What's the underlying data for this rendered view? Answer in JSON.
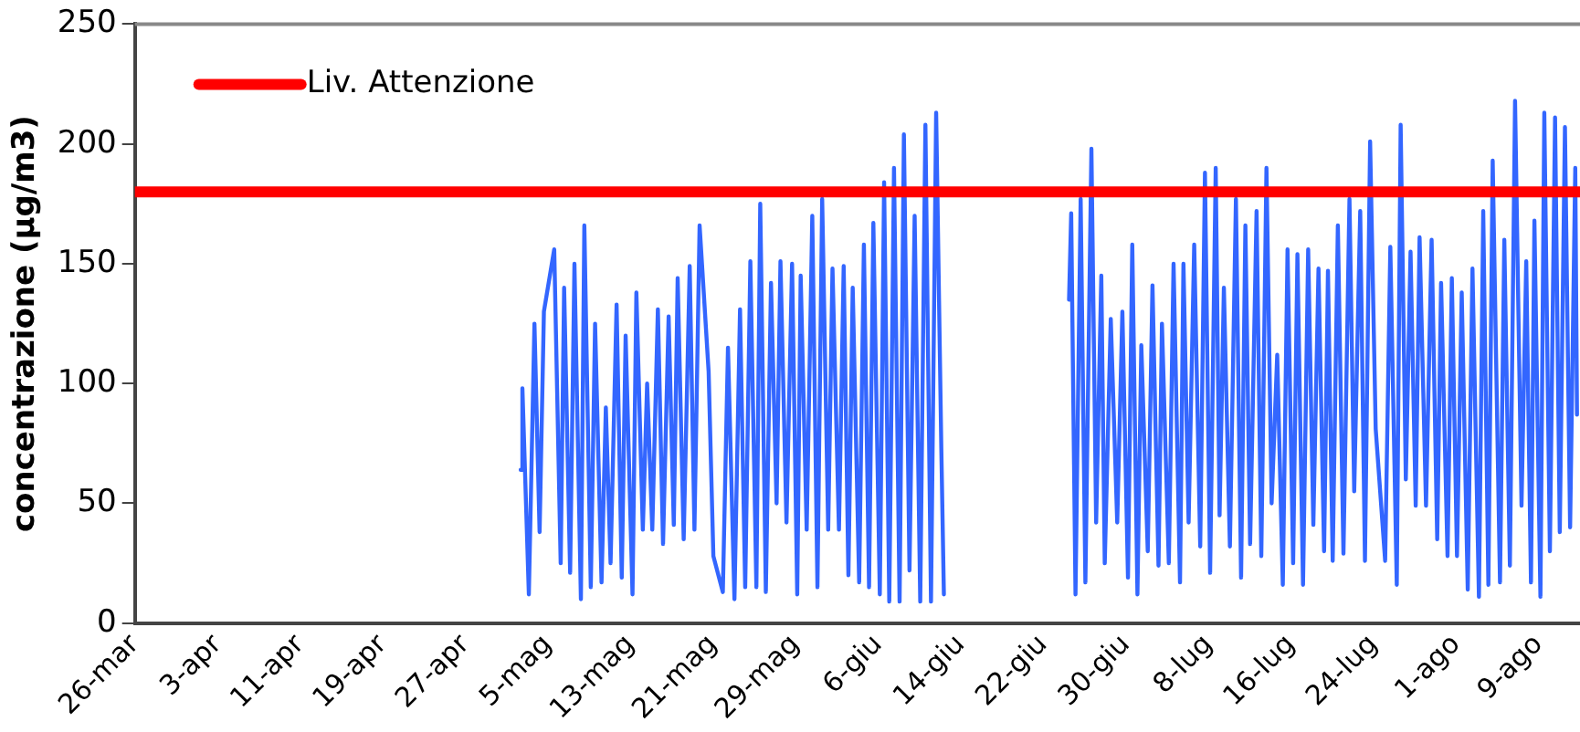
{
  "chart_data": {
    "type": "line",
    "ylabel": "concentrazione (µg/m3)",
    "xlim": [
      "--03-26",
      "--08-13"
    ],
    "xticks": [
      {
        "value": "--03-26",
        "label": "26-mar"
      },
      {
        "value": "--04-03",
        "label": "3-apr"
      },
      {
        "value": "--04-11",
        "label": "11-apr"
      },
      {
        "value": "--04-19",
        "label": "19-apr"
      },
      {
        "value": "--04-27",
        "label": "27-apr"
      },
      {
        "value": "--05-05",
        "label": "5-mag"
      },
      {
        "value": "--05-13",
        "label": "13-mag"
      },
      {
        "value": "--05-21",
        "label": "21-mag"
      },
      {
        "value": "--05-29",
        "label": "29-mag"
      },
      {
        "value": "--06-06",
        "label": "6-giu"
      },
      {
        "value": "--06-14",
        "label": "14-giu"
      },
      {
        "value": "--06-22",
        "label": "22-giu"
      },
      {
        "value": "--06-30",
        "label": "30-giu"
      },
      {
        "value": "--07-08",
        "label": "8-lug"
      },
      {
        "value": "--07-16",
        "label": "16-lug"
      },
      {
        "value": "--07-24",
        "label": "24-lug"
      },
      {
        "value": "--08-01",
        "label": "1-ago"
      },
      {
        "value": "--08-09",
        "label": "9-ago"
      }
    ],
    "ylim": [
      0,
      250
    ],
    "yticks": [
      0,
      50,
      100,
      150,
      200,
      250
    ],
    "grid": false,
    "legend": "top left",
    "marker": "none",
    "line_style": "solid",
    "ref_lines": [
      {
        "axis": "y",
        "value": 180,
        "label": "Liv. Attenzione",
        "color": "#ff0000"
      }
    ],
    "series": [
      {
        "color": "#3366ff",
        "x": [
          "--05-02T09:00",
          "--05-02T13:00",
          "--05-03T04:00",
          "--05-03T17:00",
          "--05-04T05:00",
          "--05-04T15:00",
          "--05-05T15:00",
          "--05-06T06:00",
          "--05-06T14:00",
          "--05-07T04:00",
          "--05-07T14:00",
          "--05-08T05:00",
          "--05-08T13:00",
          "--05-09T04:00",
          "--05-09T14:00",
          "--05-10T05:00",
          "--05-10T15:00",
          "--05-11T02:00",
          "--05-11T16:00",
          "--05-12T04:00",
          "--05-12T13:00",
          "--05-13T05:00",
          "--05-13T14:00",
          "--05-14T05:00",
          "--05-14T15:00",
          "--05-15T03:00",
          "--05-15T16:00",
          "--05-16T04:00",
          "--05-16T17:00",
          "--05-17T05:00",
          "--05-17T14:00",
          "--05-18T04:00",
          "--05-18T18:00",
          "--05-19T05:00",
          "--05-19T17:00",
          "--05-20T14:00",
          "--05-21T01:00",
          "--05-21T23:00",
          "--05-22T11:00",
          "--05-23T02:00",
          "--05-23T15:00",
          "--05-24T03:00",
          "--05-24T15:00",
          "--05-25T05:00",
          "--05-25T14:00",
          "--05-26T03:00",
          "--05-26T15:00",
          "--05-27T04:00",
          "--05-27T13:00",
          "--05-28T03:00",
          "--05-28T16:00",
          "--05-29T04:00",
          "--05-29T12:00",
          "--05-30T02:00",
          "--05-30T15:00",
          "--05-31T03:00",
          "--05-31T14:00",
          "--06-01T04:00",
          "--06-01T14:00",
          "--06-02T05:00",
          "--06-02T16:00",
          "--06-03T03:00",
          "--06-03T13:00",
          "--06-04T04:00",
          "--06-04T15:00",
          "--06-05T03:00",
          "--06-05T13:00",
          "--06-06T04:00",
          "--06-06T14:00",
          "--06-07T02:00",
          "--06-07T13:00",
          "--06-08T02:00",
          "--06-08T12:00",
          "--06-09T01:00",
          "--06-09T13:00",
          "--06-10T02:00",
          "--06-10T14:00",
          "--06-11T03:00",
          "--06-11T15:00",
          "--06-12T03:00",
          "--06-12T09:00",
          "--06-18T12:00",
          "--06-24T12:00",
          "--06-24T17:00",
          "--06-25T03:00",
          "--06-25T15:00",
          "--06-26T02:00",
          "--06-26T16:00",
          "--06-27T03:00",
          "--06-27T15:00",
          "--06-27T23:00",
          "--06-28T13:00",
          "--06-29T04:00",
          "--06-29T16:00",
          "--06-30T05:00",
          "--06-30T15:00",
          "--07-01T03:00",
          "--07-01T12:00",
          "--07-02T03:00",
          "--07-02T14:00",
          "--07-03T04:00",
          "--07-03T12:00",
          "--07-04T04:00",
          "--07-04T15:00",
          "--07-05T06:00",
          "--07-05T14:00",
          "--07-06T02:00",
          "--07-06T15:00",
          "--07-07T05:00",
          "--07-07T16:00",
          "--07-08T04:00",
          "--07-08T17:00",
          "--07-09T02:00",
          "--07-09T12:00",
          "--07-10T02:00",
          "--07-10T16:00",
          "--07-11T04:00",
          "--07-11T14:00",
          "--07-12T01:00",
          "--07-12T16:00",
          "--07-13T03:00",
          "--07-13T15:00",
          "--07-14T03:00",
          "--07-14T16:00",
          "--07-15T05:00",
          "--07-15T16:00",
          "--07-16T05:00",
          "--07-16T15:00",
          "--07-17T04:00",
          "--07-17T16:00",
          "--07-18T04:00",
          "--07-18T16:00",
          "--07-19T05:00",
          "--07-19T14:00",
          "--07-20T01:00",
          "--07-20T13:00",
          "--07-21T02:00",
          "--07-21T16:00",
          "--07-22T03:00",
          "--07-22T17:00",
          "--07-23T04:00",
          "--07-23T16:00",
          "--07-24T05:00",
          "--07-25T03:00",
          "--07-25T15:00",
          "--07-26T06:00",
          "--07-26T15:00",
          "--07-27T03:00",
          "--07-27T14:00",
          "--07-28T02:00",
          "--07-28T11:00",
          "--07-29T02:00",
          "--07-29T15:00",
          "--07-30T04:00",
          "--07-30T13:00",
          "--07-31T04:00",
          "--07-31T14:00",
          "--08-01T02:00",
          "--08-01T13:00",
          "--08-02T03:00",
          "--08-02T14:00",
          "--08-03T05:00",
          "--08-03T15:00",
          "--08-04T03:00",
          "--08-04T13:00",
          "--08-05T06:00",
          "--08-05T16:00",
          "--08-06T05:00",
          "--08-06T17:00",
          "--08-07T08:00",
          "--08-07T19:00",
          "--08-08T06:00",
          "--08-08T14:00",
          "--08-09T04:00",
          "--08-09T13:00",
          "--08-10T02:00",
          "--08-10T14:00",
          "--08-11T01:00",
          "--08-11T13:00",
          "--08-12T01:00",
          "--08-12T13:00",
          "--08-12T17:00"
        ],
        "values": [
          64,
          98,
          12,
          125,
          38,
          130,
          156,
          25,
          140,
          21,
          150,
          10,
          166,
          15,
          125,
          17,
          90,
          25,
          133,
          19,
          120,
          12,
          138,
          39,
          100,
          39,
          131,
          33,
          128,
          41,
          144,
          35,
          149,
          39,
          166,
          105,
          28,
          13,
          115,
          10,
          131,
          15,
          151,
          15,
          175,
          13,
          142,
          50,
          151,
          42,
          150,
          12,
          145,
          39,
          170,
          15,
          177,
          39,
          148,
          39,
          149,
          20,
          140,
          17,
          158,
          15,
          167,
          12,
          184,
          9,
          190,
          9,
          204,
          22,
          170,
          9,
          208,
          9,
          213,
          73,
          12,
          null,
          135,
          171,
          12,
          177,
          17,
          198,
          42,
          145,
          25,
          127,
          42,
          130,
          19,
          158,
          12,
          116,
          30,
          141,
          24,
          125,
          25,
          150,
          17,
          150,
          42,
          158,
          32,
          188,
          21,
          190,
          45,
          140,
          32,
          177,
          19,
          166,
          33,
          172,
          28,
          190,
          50,
          112,
          16,
          156,
          25,
          154,
          16,
          156,
          41,
          148,
          30,
          147,
          26,
          166,
          29,
          177,
          55,
          172,
          26,
          201,
          81,
          26,
          157,
          16,
          208,
          60,
          155,
          49,
          161,
          49,
          160,
          35,
          142,
          28,
          144,
          28,
          138,
          14,
          148,
          11,
          172,
          16,
          193,
          17,
          160,
          24,
          218,
          49,
          151,
          17,
          168,
          11,
          213,
          30,
          211,
          38,
          207,
          40,
          190,
          87
        ]
      }
    ]
  }
}
